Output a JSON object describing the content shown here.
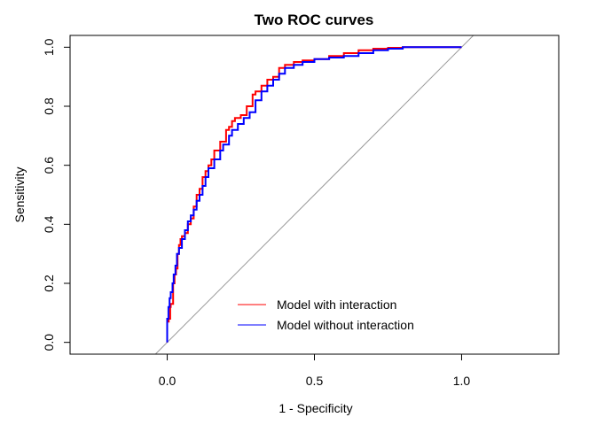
{
  "chart_data": {
    "type": "line",
    "title": "Two ROC curves",
    "xlabel": "1 - Specificity",
    "ylabel": "Sensitivity",
    "xlim": [
      -0.33,
      1.33
    ],
    "ylim": [
      -0.04,
      1.04
    ],
    "xticks": [
      0.0,
      0.5,
      1.0
    ],
    "xtick_labels": [
      "0.0",
      "0.5",
      "1.0"
    ],
    "yticks": [
      0.0,
      0.2,
      0.4,
      0.6,
      0.8,
      1.0
    ],
    "ytick_labels": [
      "0.0",
      "0.2",
      "0.4",
      "0.6",
      "0.8",
      "1.0"
    ],
    "grid": false,
    "legend_position": "bottom-center",
    "reference_line": {
      "from": [
        -0.04,
        -0.04
      ],
      "to": [
        1.04,
        1.04
      ],
      "color": "#999999"
    },
    "series": [
      {
        "name": "Model with interaction",
        "color": "#ff0000",
        "x": [
          0.0,
          0.0,
          0.005,
          0.01,
          0.012,
          0.02,
          0.025,
          0.03,
          0.035,
          0.04,
          0.045,
          0.05,
          0.06,
          0.07,
          0.08,
          0.09,
          0.1,
          0.11,
          0.12,
          0.13,
          0.14,
          0.15,
          0.16,
          0.18,
          0.2,
          0.21,
          0.22,
          0.23,
          0.25,
          0.27,
          0.29,
          0.3,
          0.32,
          0.34,
          0.36,
          0.38,
          0.4,
          0.43,
          0.46,
          0.5,
          0.55,
          0.6,
          0.65,
          0.7,
          0.75,
          0.8,
          0.9,
          1.0
        ],
        "y": [
          0.0,
          0.07,
          0.08,
          0.12,
          0.13,
          0.2,
          0.23,
          0.25,
          0.3,
          0.33,
          0.35,
          0.36,
          0.37,
          0.4,
          0.42,
          0.46,
          0.5,
          0.52,
          0.56,
          0.58,
          0.6,
          0.62,
          0.65,
          0.68,
          0.72,
          0.73,
          0.75,
          0.76,
          0.77,
          0.8,
          0.84,
          0.85,
          0.87,
          0.89,
          0.9,
          0.93,
          0.94,
          0.95,
          0.955,
          0.96,
          0.97,
          0.98,
          0.99,
          0.995,
          0.998,
          1.0,
          1.0,
          1.0
        ]
      },
      {
        "name": "Model without interaction",
        "color": "#0000ff",
        "x": [
          0.0,
          0.0,
          0.004,
          0.008,
          0.012,
          0.018,
          0.022,
          0.028,
          0.033,
          0.04,
          0.05,
          0.06,
          0.07,
          0.08,
          0.09,
          0.1,
          0.11,
          0.12,
          0.13,
          0.14,
          0.16,
          0.18,
          0.19,
          0.21,
          0.22,
          0.24,
          0.26,
          0.28,
          0.3,
          0.32,
          0.34,
          0.36,
          0.38,
          0.4,
          0.43,
          0.46,
          0.5,
          0.55,
          0.6,
          0.65,
          0.7,
          0.75,
          0.8,
          0.9,
          1.0
        ],
        "y": [
          0.0,
          0.08,
          0.12,
          0.15,
          0.17,
          0.2,
          0.23,
          0.26,
          0.3,
          0.32,
          0.35,
          0.38,
          0.41,
          0.43,
          0.45,
          0.48,
          0.5,
          0.53,
          0.56,
          0.59,
          0.62,
          0.65,
          0.67,
          0.7,
          0.72,
          0.74,
          0.76,
          0.78,
          0.82,
          0.85,
          0.87,
          0.89,
          0.91,
          0.93,
          0.94,
          0.95,
          0.96,
          0.965,
          0.97,
          0.98,
          0.99,
          0.995,
          1.0,
          1.0,
          1.0
        ]
      }
    ]
  }
}
